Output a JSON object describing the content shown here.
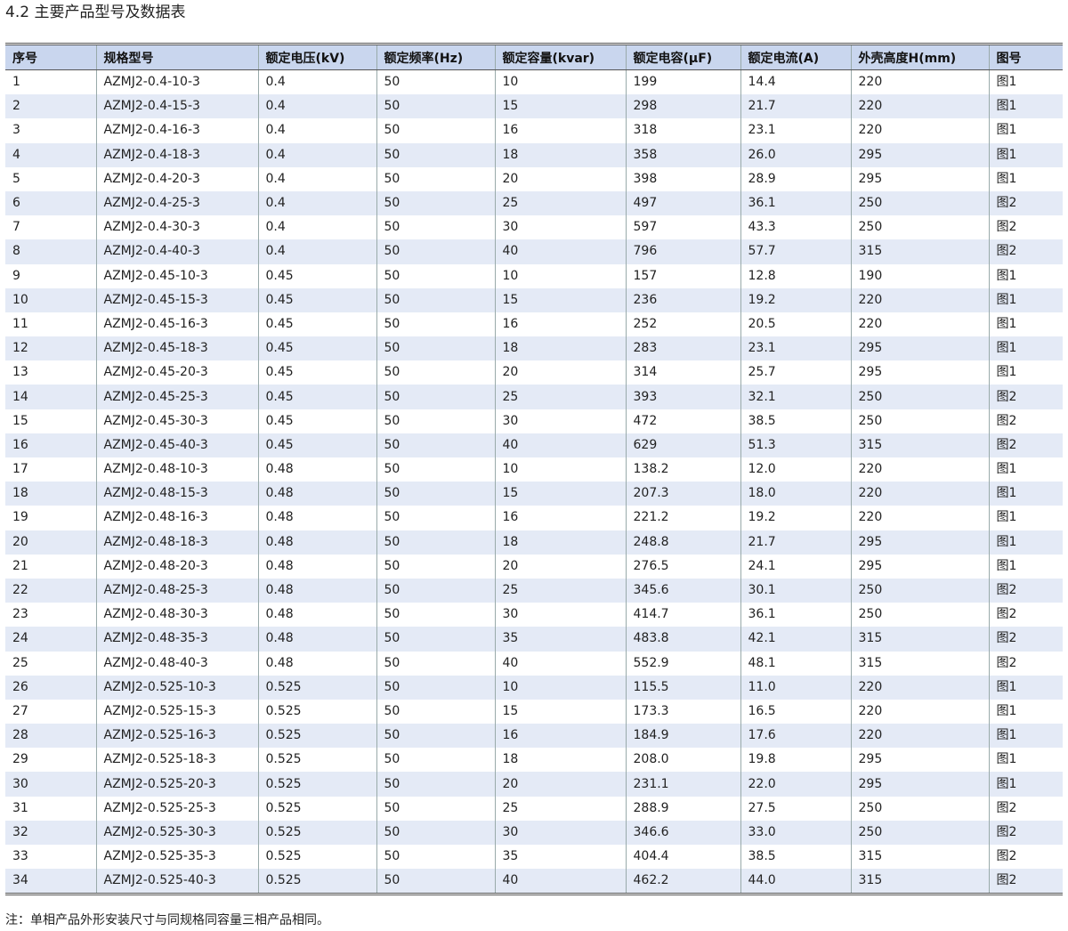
{
  "header": {
    "title": "4.2 主要产品型号及数据表"
  },
  "table": {
    "columns": [
      "序号",
      "规格型号",
      "额定电压(kV)",
      "额定频率(Hz)",
      "额定容量(kvar)",
      "额定电容(μF)",
      "额定电流(A)",
      "外壳高度H(mm)",
      "图号"
    ],
    "rows": [
      [
        "1",
        "AZMJ2-0.4-10-3",
        "0.4",
        "50",
        "10",
        "199",
        "14.4",
        "220",
        "图1"
      ],
      [
        "2",
        "AZMJ2-0.4-15-3",
        "0.4",
        "50",
        "15",
        "298",
        "21.7",
        "220",
        "图1"
      ],
      [
        "3",
        "AZMJ2-0.4-16-3",
        "0.4",
        "50",
        "16",
        "318",
        "23.1",
        "220",
        "图1"
      ],
      [
        "4",
        "AZMJ2-0.4-18-3",
        "0.4",
        "50",
        "18",
        "358",
        "26.0",
        "295",
        "图1"
      ],
      [
        "5",
        "AZMJ2-0.4-20-3",
        "0.4",
        "50",
        "20",
        "398",
        "28.9",
        "295",
        "图1"
      ],
      [
        "6",
        "AZMJ2-0.4-25-3",
        "0.4",
        "50",
        "25",
        "497",
        "36.1",
        "250",
        "图2"
      ],
      [
        "7",
        "AZMJ2-0.4-30-3",
        "0.4",
        "50",
        "30",
        "597",
        "43.3",
        "250",
        "图2"
      ],
      [
        "8",
        "AZMJ2-0.4-40-3",
        "0.4",
        "50",
        "40",
        "796",
        "57.7",
        "315",
        "图2"
      ],
      [
        "9",
        "AZMJ2-0.45-10-3",
        "0.45",
        "50",
        "10",
        "157",
        "12.8",
        "190",
        "图1"
      ],
      [
        "10",
        "AZMJ2-0.45-15-3",
        "0.45",
        "50",
        "15",
        "236",
        "19.2",
        "220",
        "图1"
      ],
      [
        "11",
        "AZMJ2-0.45-16-3",
        "0.45",
        "50",
        "16",
        "252",
        "20.5",
        "220",
        "图1"
      ],
      [
        "12",
        "AZMJ2-0.45-18-3",
        "0.45",
        "50",
        "18",
        "283",
        "23.1",
        "295",
        "图1"
      ],
      [
        "13",
        "AZMJ2-0.45-20-3",
        "0.45",
        "50",
        "20",
        "314",
        "25.7",
        "295",
        "图1"
      ],
      [
        "14",
        "AZMJ2-0.45-25-3",
        "0.45",
        "50",
        "25",
        "393",
        "32.1",
        "250",
        "图2"
      ],
      [
        "15",
        "AZMJ2-0.45-30-3",
        "0.45",
        "50",
        "30",
        "472",
        "38.5",
        "250",
        "图2"
      ],
      [
        "16",
        "AZMJ2-0.45-40-3",
        "0.45",
        "50",
        "40",
        "629",
        "51.3",
        "315",
        "图2"
      ],
      [
        "17",
        "AZMJ2-0.48-10-3",
        "0.48",
        "50",
        "10",
        "138.2",
        "12.0",
        "220",
        "图1"
      ],
      [
        "18",
        "AZMJ2-0.48-15-3",
        "0.48",
        "50",
        "15",
        "207.3",
        "18.0",
        "220",
        "图1"
      ],
      [
        "19",
        "AZMJ2-0.48-16-3",
        "0.48",
        "50",
        "16",
        "221.2",
        "19.2",
        "220",
        "图1"
      ],
      [
        "20",
        "AZMJ2-0.48-18-3",
        "0.48",
        "50",
        "18",
        "248.8",
        "21.7",
        "295",
        "图1"
      ],
      [
        "21",
        "AZMJ2-0.48-20-3",
        "0.48",
        "50",
        "20",
        "276.5",
        "24.1",
        "295",
        "图1"
      ],
      [
        "22",
        "AZMJ2-0.48-25-3",
        "0.48",
        "50",
        "25",
        "345.6",
        "30.1",
        "250",
        "图2"
      ],
      [
        "23",
        "AZMJ2-0.48-30-3",
        "0.48",
        "50",
        "30",
        "414.7",
        "36.1",
        "250",
        "图2"
      ],
      [
        "24",
        "AZMJ2-0.48-35-3",
        "0.48",
        "50",
        "35",
        "483.8",
        "42.1",
        "315",
        "图2"
      ],
      [
        "25",
        "AZMJ2-0.48-40-3",
        "0.48",
        "50",
        "40",
        "552.9",
        "48.1",
        "315",
        "图2"
      ],
      [
        "26",
        "AZMJ2-0.525-10-3",
        "0.525",
        "50",
        "10",
        "115.5",
        "11.0",
        "220",
        "图1"
      ],
      [
        "27",
        "AZMJ2-0.525-15-3",
        "0.525",
        "50",
        "15",
        "173.3",
        "16.5",
        "220",
        "图1"
      ],
      [
        "28",
        "AZMJ2-0.525-16-3",
        "0.525",
        "50",
        "16",
        "184.9",
        "17.6",
        "220",
        "图1"
      ],
      [
        "29",
        "AZMJ2-0.525-18-3",
        "0.525",
        "50",
        "18",
        "208.0",
        "19.8",
        "295",
        "图1"
      ],
      [
        "30",
        "AZMJ2-0.525-20-3",
        "0.525",
        "50",
        "20",
        "231.1",
        "22.0",
        "295",
        "图1"
      ],
      [
        "31",
        "AZMJ2-0.525-25-3",
        "0.525",
        "50",
        "25",
        "288.9",
        "27.5",
        "250",
        "图2"
      ],
      [
        "32",
        "AZMJ2-0.525-30-3",
        "0.525",
        "50",
        "30",
        "346.6",
        "33.0",
        "250",
        "图2"
      ],
      [
        "33",
        "AZMJ2-0.525-35-3",
        "0.525",
        "50",
        "35",
        "404.4",
        "38.5",
        "315",
        "图2"
      ],
      [
        "34",
        "AZMJ2-0.525-40-3",
        "0.525",
        "50",
        "40",
        "462.2",
        "44.0",
        "315",
        "图2"
      ]
    ]
  },
  "footer": {
    "note": "注：单相产品外形安装尺寸与同规格同容量三相产品相同。"
  }
}
